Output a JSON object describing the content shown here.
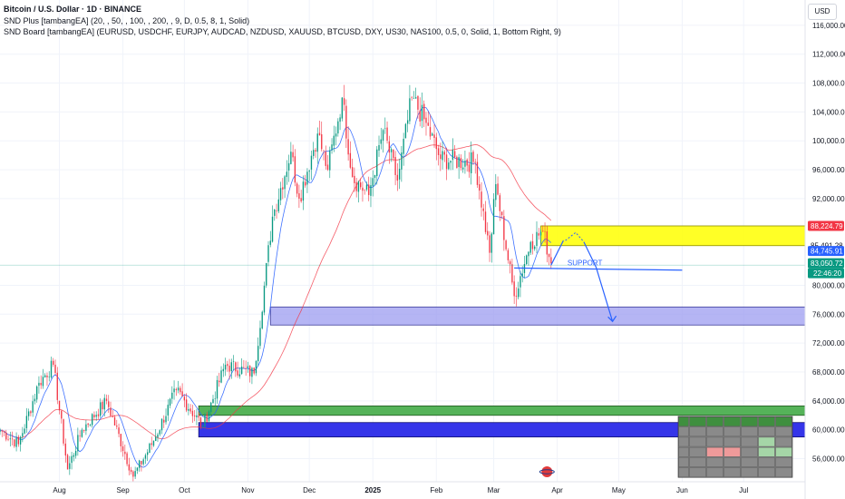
{
  "header": {
    "symbol_line": "Bitcoin / U.S. Dollar · 1D · BINANCE",
    "indicator_1": "SND Plus [tambangEA] (20, , 50, , 100, , 200, , 9, D, 0.5, 8, 1, Solid)",
    "indicator_2": "SND Board [tambangEA] (EURUSD, USDCHF, EURJPY, AUDCAD, NZDUSD, XAUUSD, BTCUSD, DXY, US30, NAS100, 0.5, 0, Solid, 1, Bottom Right, 9)"
  },
  "currency_label": "USD",
  "colors": {
    "up": "#089981",
    "down": "#f23645",
    "ma_fast": "#2962ff",
    "ma_slow": "#f23645",
    "zone_yellow": "#ffff00",
    "zone_purple": "#9c9cf0",
    "zone_green": "#4caf50",
    "zone_blue": "#2a2ae8",
    "annotation": "#2962ff"
  },
  "annotations": {
    "support_label": "SUPPORT"
  },
  "price_tags": [
    {
      "value": 88224.79,
      "label": "88,224.79",
      "color": "#f23645"
    },
    {
      "value": 85491.28,
      "label": "85,491.28",
      "color": "#ffffff"
    },
    {
      "value": 84745.91,
      "label": "84,745.91",
      "color": "#2962ff"
    },
    {
      "value": 83050.72,
      "label": "83,050.72",
      "color": "#089981"
    }
  ],
  "countdown": "22:46:20",
  "chart_data": {
    "type": "candlestick",
    "title": "Bitcoin / U.S. Dollar · 1D · BINANCE",
    "ylim": [
      52800,
      119500
    ],
    "y_ticks": [
      {
        "value": 116000,
        "label": "116,000.00"
      },
      {
        "value": 112000,
        "label": "112,000.00"
      },
      {
        "value": 108000,
        "label": "108,000.00"
      },
      {
        "value": 104000,
        "label": "104,000.00"
      },
      {
        "value": 100000,
        "label": "100,000.00"
      },
      {
        "value": 96000,
        "label": "96,000.00"
      },
      {
        "value": 92000,
        "label": "92,000.00"
      },
      {
        "value": 80000,
        "label": "80,000.00"
      },
      {
        "value": 76000,
        "label": "76,000.00"
      },
      {
        "value": 72000,
        "label": "72,000.00"
      },
      {
        "value": 68000,
        "label": "68,000.00"
      },
      {
        "value": 64000,
        "label": "64,000.00"
      },
      {
        "value": 60000,
        "label": "60,000.00"
      },
      {
        "value": 56000,
        "label": "56,000.00"
      }
    ],
    "x_ticks": [
      {
        "date": "2024-08-01",
        "label": "Aug"
      },
      {
        "date": "2024-09-01",
        "label": "Sep"
      },
      {
        "date": "2024-10-01",
        "label": "Oct"
      },
      {
        "date": "2024-11-01",
        "label": "Nov"
      },
      {
        "date": "2024-12-01",
        "label": "Dec"
      },
      {
        "date": "2025-01-01",
        "label": "2025"
      },
      {
        "date": "2025-02-01",
        "label": "Feb"
      },
      {
        "date": "2025-03-01",
        "label": "Mar"
      },
      {
        "date": "2025-04-01",
        "label": "Apr"
      },
      {
        "date": "2025-05-01",
        "label": "May"
      },
      {
        "date": "2025-06-01",
        "label": "Jun"
      },
      {
        "date": "2025-07-01",
        "label": "Jul"
      }
    ],
    "date_range": [
      "2024-07-03",
      "2025-07-31"
    ],
    "last_candle_date": "2025-03-29",
    "anchors": [
      {
        "date": "2024-07-03",
        "close": 60000
      },
      {
        "date": "2024-07-12",
        "close": 58000
      },
      {
        "date": "2024-07-22",
        "close": 66500
      },
      {
        "date": "2024-07-29",
        "close": 69000
      },
      {
        "date": "2024-08-05",
        "close": 54500
      },
      {
        "date": "2024-08-12",
        "close": 60000
      },
      {
        "date": "2024-08-24",
        "close": 64000
      },
      {
        "date": "2024-09-06",
        "close": 53500
      },
      {
        "date": "2024-09-16",
        "close": 58500
      },
      {
        "date": "2024-09-27",
        "close": 65500
      },
      {
        "date": "2024-10-10",
        "close": 60500
      },
      {
        "date": "2024-10-21",
        "close": 69000
      },
      {
        "date": "2024-11-04",
        "close": 67800
      },
      {
        "date": "2024-11-13",
        "close": 89500
      },
      {
        "date": "2024-11-22",
        "close": 98500
      },
      {
        "date": "2024-11-26",
        "close": 92000
      },
      {
        "date": "2024-12-05",
        "close": 101000
      },
      {
        "date": "2024-12-10",
        "close": 96000
      },
      {
        "date": "2024-12-17",
        "close": 106000
      },
      {
        "date": "2024-12-22",
        "close": 95000
      },
      {
        "date": "2024-12-30",
        "close": 92500
      },
      {
        "date": "2025-01-06",
        "close": 101500
      },
      {
        "date": "2025-01-13",
        "close": 94500
      },
      {
        "date": "2025-01-20",
        "close": 106000
      },
      {
        "date": "2025-01-26",
        "close": 103000
      },
      {
        "date": "2025-02-03",
        "close": 97500
      },
      {
        "date": "2025-02-20",
        "close": 97000
      },
      {
        "date": "2025-02-27",
        "close": 84500
      },
      {
        "date": "2025-03-02",
        "close": 94000
      },
      {
        "date": "2025-03-11",
        "close": 78500
      },
      {
        "date": "2025-03-19",
        "close": 86000
      },
      {
        "date": "2025-03-25",
        "close": 87500
      },
      {
        "date": "2025-03-29",
        "close": 83050
      }
    ],
    "zones": [
      {
        "name": "yellow",
        "from_date": "2025-03-24",
        "to_date": "2025-07-31",
        "low": 85491,
        "high": 88224
      },
      {
        "name": "purple",
        "from_date": "2024-11-12",
        "to_date": "2025-07-31",
        "low": 74500,
        "high": 77000
      },
      {
        "name": "green",
        "from_date": "2024-10-08",
        "to_date": "2025-07-31",
        "low": 62000,
        "high": 63300
      },
      {
        "name": "blue",
        "from_date": "2024-10-08",
        "to_date": "2025-07-31",
        "low": 59000,
        "high": 61000
      }
    ],
    "support_line": {
      "from_date": "2025-03-11",
      "to_date": "2025-06-01",
      "from_value": 82400,
      "to_value": 82100
    },
    "current_price": 83050.72,
    "price_line": 82800,
    "projection": {
      "up_path": [
        {
          "date": "2025-03-29",
          "value": 82800
        },
        {
          "date": "2025-04-04",
          "value": 86200
        }
      ],
      "curve_dashed": [
        {
          "date": "2025-04-05",
          "value": 86200
        },
        {
          "date": "2025-04-10",
          "value": 87300
        },
        {
          "date": "2025-04-14",
          "value": 86000
        }
      ],
      "down_path": [
        {
          "date": "2025-04-14",
          "value": 86000
        },
        {
          "date": "2025-04-20",
          "value": 82500
        },
        {
          "date": "2025-04-28",
          "value": 75000
        }
      ]
    }
  }
}
